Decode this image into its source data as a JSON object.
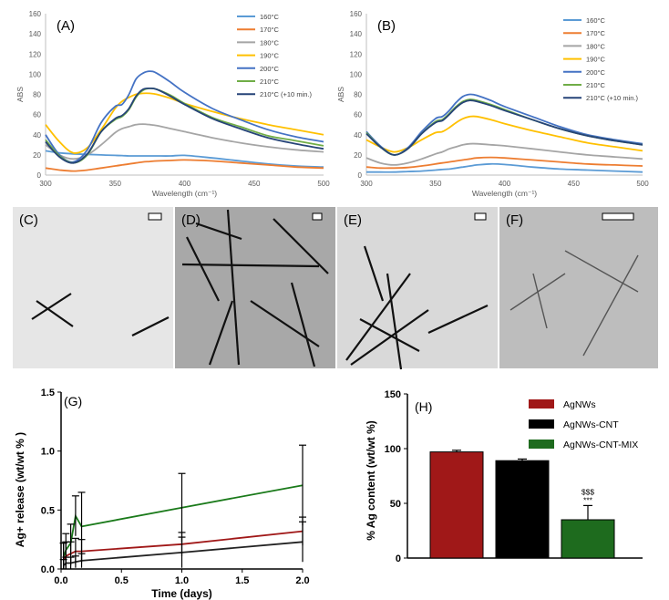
{
  "chart_data": [
    {
      "panel": "(A)",
      "type": "line",
      "xlabel": "Wavelength (cm⁻¹)",
      "ylabel": "ABS",
      "xlim": [
        300,
        500
      ],
      "ylim": [
        0,
        160
      ],
      "xticks": [
        300,
        350,
        400,
        450,
        500
      ],
      "yticks": [
        0,
        20,
        40,
        60,
        80,
        100,
        120,
        140,
        160
      ],
      "grid": false,
      "legend_position": "top-right",
      "x": [
        300,
        310,
        320,
        330,
        340,
        350,
        355,
        360,
        365,
        370,
        375,
        380,
        390,
        400,
        420,
        440,
        460,
        480,
        500
      ],
      "series": [
        {
          "name": "160°C",
          "color": "#5b9bd5",
          "values": [
            24,
            22,
            21,
            20.5,
            20,
            19.5,
            19.3,
            19,
            19,
            19,
            19,
            19,
            19,
            19.5,
            17,
            14,
            11,
            9,
            8
          ]
        },
        {
          "name": "170°C",
          "color": "#ed7d31",
          "values": [
            7,
            5,
            4,
            5,
            7,
            9,
            10,
            11,
            12,
            13,
            13.5,
            14,
            14.5,
            15,
            14,
            12,
            10,
            8,
            7
          ]
        },
        {
          "name": "180°C",
          "color": "#a5a5a5",
          "values": [
            30,
            20,
            16,
            20,
            30,
            42,
            46,
            48,
            50,
            50.5,
            50,
            49,
            46,
            43,
            37,
            32,
            28,
            25,
            23
          ]
        },
        {
          "name": "190°C",
          "color": "#ffc000",
          "values": [
            50,
            33,
            22,
            27,
            45,
            66,
            73,
            77,
            80,
            81,
            81,
            80,
            76,
            71,
            63,
            56,
            50,
            45,
            40
          ]
        },
        {
          "name": "200°C",
          "color": "#4472c4",
          "values": [
            40,
            20,
            13,
            25,
            52,
            68,
            70,
            80,
            95,
            101,
            103,
            101,
            92,
            82,
            66,
            55,
            45,
            38,
            33
          ]
        },
        {
          "name": "210°C",
          "color": "#70ad47",
          "values": [
            35,
            19,
            12,
            20,
            43,
            55,
            58,
            65,
            77,
            84,
            86,
            85,
            79,
            71,
            57,
            48,
            39,
            34,
            29
          ]
        },
        {
          "name": "210°C (+10 min.)",
          "color": "#264478",
          "values": [
            33,
            18,
            12,
            21,
            43,
            56,
            59,
            66,
            78,
            85,
            86,
            85,
            78,
            70,
            56,
            46,
            37,
            31,
            26
          ]
        }
      ]
    },
    {
      "panel": "(B)",
      "type": "line",
      "xlabel": "Wavelength (cm⁻¹)",
      "ylabel": "ABS",
      "xlim": [
        300,
        500
      ],
      "ylim": [
        0,
        160
      ],
      "xticks": [
        300,
        350,
        400,
        450,
        500
      ],
      "yticks": [
        0,
        20,
        40,
        60,
        80,
        100,
        120,
        140,
        160
      ],
      "grid": false,
      "legend_position": "top-right",
      "x": [
        300,
        310,
        320,
        330,
        340,
        350,
        355,
        360,
        365,
        370,
        375,
        380,
        390,
        400,
        420,
        440,
        460,
        480,
        500
      ],
      "series": [
        {
          "name": "160°C",
          "color": "#5b9bd5",
          "values": [
            3,
            3,
            3,
            3.5,
            4,
            5,
            5.5,
            6,
            7,
            8,
            9,
            10,
            11,
            10.5,
            8,
            6,
            5,
            4,
            3
          ]
        },
        {
          "name": "170°C",
          "color": "#ed7d31",
          "values": [
            8,
            7,
            7,
            7.5,
            9,
            11,
            12,
            13,
            14,
            15,
            16,
            17,
            17.5,
            17,
            15,
            13,
            11,
            10,
            9
          ]
        },
        {
          "name": "180°C",
          "color": "#a5a5a5",
          "values": [
            17,
            12,
            10,
            12,
            16,
            21,
            23,
            26,
            28,
            30,
            31,
            31,
            30,
            29,
            26,
            23,
            20,
            18,
            16
          ]
        },
        {
          "name": "190°C",
          "color": "#ffc000",
          "values": [
            35,
            28,
            23,
            27,
            35,
            42,
            43,
            47,
            52,
            56,
            58,
            58,
            55,
            51,
            44,
            38,
            32,
            28,
            24
          ]
        },
        {
          "name": "200°C",
          "color": "#4472c4",
          "values": [
            43,
            29,
            20,
            27,
            43,
            56,
            58,
            64,
            72,
            78,
            80,
            79,
            74,
            68,
            58,
            48,
            40,
            35,
            31
          ]
        },
        {
          "name": "210°C",
          "color": "#70ad47",
          "values": [
            42,
            28,
            20,
            26,
            41,
            53,
            55,
            61,
            68,
            73,
            75,
            74,
            70,
            65,
            55,
            46,
            39,
            34,
            30
          ]
        },
        {
          "name": "210°C (+10 min.)",
          "color": "#264478",
          "values": [
            41,
            28,
            20,
            26,
            41,
            52,
            54,
            60,
            67,
            72,
            74,
            73,
            69,
            64,
            55,
            46,
            39,
            34,
            30
          ]
        }
      ]
    },
    {
      "panel": "(G)",
      "type": "line",
      "xlabel": "Time (days)",
      "ylabel": "Ag+ release (wt/wt % )",
      "xlim": [
        0,
        2.0
      ],
      "ylim": [
        0,
        1.5
      ],
      "xticks": [
        0.0,
        0.5,
        1.0,
        1.5,
        2.0
      ],
      "xtick_labels": [
        "0.0",
        "0.5",
        "1.0",
        "1.5",
        "2.0"
      ],
      "yticks": [
        0.0,
        0.5,
        1.0,
        1.5
      ],
      "ytick_labels": [
        "0.0",
        "0.5",
        "1.0",
        "1.5"
      ],
      "grid": false,
      "series": [
        {
          "color": "#1a7a1a",
          "x": [
            0.02,
            0.04,
            0.08,
            0.12,
            0.17,
            1.0,
            2.0
          ],
          "values": [
            0.1,
            0.16,
            0.22,
            0.45,
            0.36,
            0.52,
            0.71
          ],
          "err": [
            0.12,
            0.14,
            0.16,
            0.17,
            0.29,
            0.29,
            0.34
          ]
        },
        {
          "color": "#a01818",
          "x": [
            0.02,
            0.04,
            0.08,
            0.12,
            0.17,
            1.0,
            2.0
          ],
          "values": [
            0.08,
            0.11,
            0.13,
            0.15,
            0.15,
            0.21,
            0.32
          ],
          "err": [
            0.14,
            0.12,
            0.1,
            0.11,
            0.1,
            0.1,
            0.12
          ]
        },
        {
          "color": "#222222",
          "x": [
            0.02,
            0.04,
            0.08,
            0.12,
            0.17,
            1.0,
            2.0
          ],
          "values": [
            0.03,
            0.05,
            0.05,
            0.06,
            0.07,
            0.14,
            0.23
          ],
          "err": [
            0.05,
            0.05,
            0.05,
            0.05,
            0.06,
            0.13,
            0.17
          ]
        }
      ]
    },
    {
      "panel": "(H)",
      "type": "bar",
      "ylabel": "% Ag content (wt/wt %)",
      "ylim": [
        0,
        150
      ],
      "yticks": [
        0,
        50,
        100,
        150
      ],
      "legend_position": "top-right",
      "categories": [
        "AgNWs",
        "AgNWs-CNT",
        "AgNWs-CNT-MIX"
      ],
      "values": [
        97,
        89,
        35
      ],
      "errors": [
        1.5,
        1.5,
        13
      ],
      "colors": [
        "#a01818",
        "#000000",
        "#1e6b1e"
      ],
      "annotations": [
        "$$$",
        "***"
      ]
    }
  ],
  "micrographs": [
    {
      "panel": "(C)",
      "tone": "#e6e6e6"
    },
    {
      "panel": "(D)",
      "tone": "#a8a8a8"
    },
    {
      "panel": "(E)",
      "tone": "#d9d9d9"
    },
    {
      "panel": "(F)",
      "tone": "#bdbdbd"
    }
  ]
}
